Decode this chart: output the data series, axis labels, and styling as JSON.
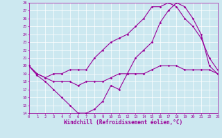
{
  "xlabel": "Windchill (Refroidissement éolien,°C)",
  "background_color": "#cce8f0",
  "grid_color": "#ffffff",
  "line_color": "#990099",
  "xlim": [
    0,
    23
  ],
  "ylim": [
    14,
    28
  ],
  "xticks": [
    0,
    1,
    2,
    3,
    4,
    5,
    6,
    7,
    8,
    9,
    10,
    11,
    12,
    13,
    14,
    15,
    16,
    17,
    18,
    19,
    20,
    21,
    22,
    23
  ],
  "yticks": [
    14,
    15,
    16,
    17,
    18,
    19,
    20,
    21,
    22,
    23,
    24,
    25,
    26,
    27,
    28
  ],
  "line1_x": [
    0,
    1,
    2,
    3,
    4,
    5,
    6,
    7,
    8,
    9,
    10,
    11,
    12,
    13,
    14,
    15,
    16,
    17,
    18,
    19,
    20,
    21,
    22,
    23
  ],
  "line1_y": [
    20,
    18.8,
    18,
    17,
    16,
    15,
    14,
    14,
    14.5,
    15.5,
    17.5,
    17,
    19,
    21,
    22,
    23,
    25.5,
    27,
    28,
    27.5,
    26,
    24,
    20,
    19
  ],
  "line2_x": [
    0,
    1,
    2,
    3,
    4,
    5,
    6,
    7,
    8,
    9,
    10,
    11,
    12,
    13,
    14,
    15,
    16,
    17,
    18,
    19,
    20,
    21,
    22,
    23
  ],
  "line2_y": [
    20,
    19,
    18.5,
    18,
    18,
    18,
    17.5,
    18,
    18,
    18,
    18.5,
    19,
    19,
    19,
    19,
    19.5,
    20,
    20,
    20,
    19.5,
    19.5,
    19.5,
    19.5,
    19
  ],
  "line3_x": [
    0,
    1,
    2,
    3,
    4,
    5,
    6,
    7,
    8,
    9,
    10,
    11,
    12,
    13,
    14,
    15,
    16,
    17,
    18,
    19,
    20,
    21,
    22,
    23
  ],
  "line3_y": [
    20,
    19,
    18.5,
    19,
    19,
    19.5,
    19.5,
    19.5,
    21,
    22,
    23,
    23.5,
    24,
    25,
    26,
    27.5,
    27.5,
    28,
    27.5,
    26,
    25,
    23.5,
    21,
    19.5
  ],
  "label_fontsize": 5.5,
  "tick_fontsize": 4.0,
  "linewidth": 0.8,
  "markersize": 1.8
}
